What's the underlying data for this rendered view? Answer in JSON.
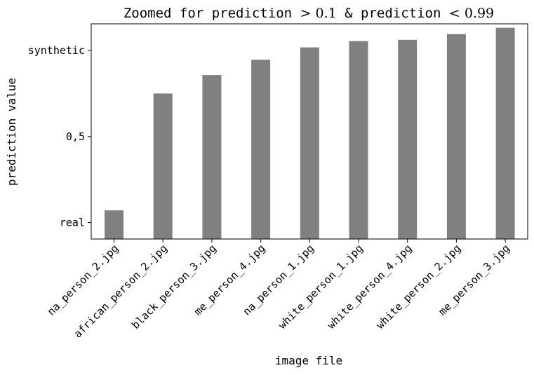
{
  "chart_data": {
    "type": "bar",
    "title_parts": [
      {
        "text": "Zoomed for prediction ",
        "style": "mono"
      },
      {
        "text": "> 0.1",
        "style": "math"
      },
      {
        "text": " & prediction ",
        "style": "mono"
      },
      {
        "text": "< 0.99",
        "style": "math"
      }
    ],
    "xlabel": "image file",
    "ylabel": "prediction value",
    "categories": [
      "na_person_2.jpg",
      "african_person_2.jpg",
      "black_person_3.jpg",
      "me_person_4.jpg",
      "na_person_1.jpg",
      "white_person_1.jpg",
      "white_person_4.jpg",
      "white_person_2.jpg",
      "me_person_3.jpg"
    ],
    "values": [
      0.14,
      0.71,
      0.8,
      0.875,
      0.935,
      0.966,
      0.972,
      1.0,
      1.031
    ],
    "ylim": [
      0.0,
      1.05
    ],
    "yticks": [
      {
        "value": 0.08,
        "label": "real"
      },
      {
        "value": 0.5,
        "label": "0,5"
      },
      {
        "value": 0.92,
        "label": "synthetic"
      }
    ],
    "bar_color": "#808080",
    "grid": false,
    "legend": "none"
  }
}
